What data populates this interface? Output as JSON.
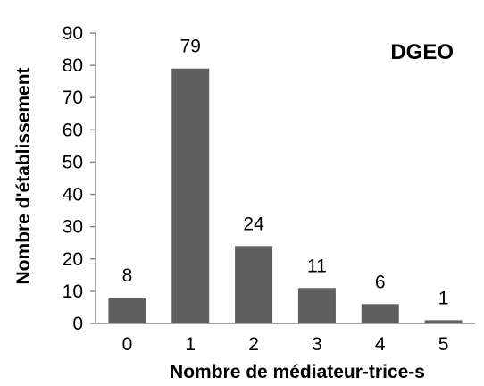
{
  "chart_data": {
    "type": "bar",
    "categories": [
      "0",
      "1",
      "2",
      "3",
      "4",
      "5"
    ],
    "values": [
      8,
      79,
      24,
      11,
      6,
      1
    ],
    "data_labels": [
      "8",
      "79",
      "24",
      "11",
      "6",
      "1"
    ],
    "title": "",
    "corner_label": "DGEO",
    "xlabel": "Nombre de médiateur-trice-s",
    "ylabel": "Nombre d'établissement",
    "ylim": [
      0,
      90
    ],
    "yticks": [
      "0",
      "10",
      "20",
      "30",
      "40",
      "50",
      "60",
      "70",
      "80",
      "90"
    ],
    "grid": false,
    "legend": "none",
    "colors": {
      "bar": "#5f5f5f",
      "axis": "#898989",
      "text": "#000000"
    }
  }
}
